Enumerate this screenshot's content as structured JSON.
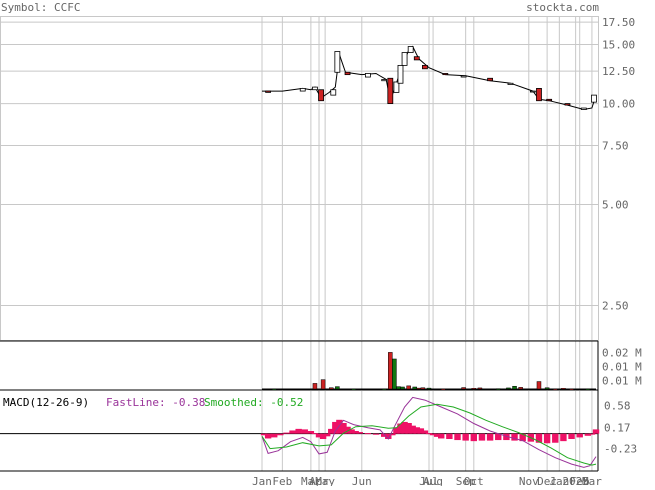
{
  "header": {
    "symbol_label": "Symbol: CCFC",
    "source_label": "stockta.com"
  },
  "colors": {
    "grid": "#c8c8c8",
    "frame": "#000000",
    "label": "#666666",
    "up_candle": "#ffffff",
    "down_candle": "#cc2222",
    "volume_up": "#117711",
    "volume_down": "#cc2222",
    "macd_hist": "#ee1166",
    "fast_line": "#993399",
    "smoothed_line": "#22aa22"
  },
  "chart_data": [
    {
      "type": "candlestick",
      "name": "price",
      "y_scale": "log",
      "ylim": [
        2.0,
        18.0
      ],
      "y_ticks": [
        "17.50",
        "15.00",
        "12.50",
        "10.00",
        "7.50",
        "5.00",
        "2.50"
      ],
      "y_tick_values": [
        17.5,
        15.0,
        12.5,
        10.0,
        7.5,
        5.0,
        2.5
      ],
      "x_tick_labels": [
        "Jan",
        "Feb",
        "Mar",
        "Apr",
        "May",
        "Jun",
        "Jul",
        "Aug",
        "Sep",
        "Oct",
        "Nov",
        "Dec",
        "Jan",
        "2025",
        "Feb",
        "Mar"
      ],
      "x_tick_index": [
        0,
        10,
        24,
        28,
        31,
        49,
        82,
        84,
        100,
        104,
        131,
        140,
        146,
        154,
        156,
        162
      ],
      "n_bars": 165,
      "candles": [
        {
          "i": 3,
          "o": 10.9,
          "c": 10.8
        },
        {
          "i": 20,
          "o": 10.9,
          "c": 11.1
        },
        {
          "i": 26,
          "o": 11.0,
          "c": 11.2
        },
        {
          "i": 29,
          "o": 11.0,
          "c": 10.2
        },
        {
          "i": 35,
          "o": 10.6,
          "c": 11.0
        },
        {
          "i": 37,
          "o": 12.4,
          "c": 14.3
        },
        {
          "i": 42,
          "o": 12.4,
          "c": 12.2
        },
        {
          "i": 52,
          "o": 12.0,
          "c": 12.3
        },
        {
          "i": 60,
          "o": 11.7,
          "c": 11.8
        },
        {
          "i": 63,
          "o": 11.9,
          "c": 10.0
        },
        {
          "i": 66,
          "o": 10.8,
          "c": 11.6
        },
        {
          "i": 68,
          "o": 11.5,
          "c": 13.0
        },
        {
          "i": 70,
          "o": 13.0,
          "c": 14.2
        },
        {
          "i": 73,
          "o": 14.2,
          "c": 14.8
        },
        {
          "i": 76,
          "o": 13.8,
          "c": 13.5
        },
        {
          "i": 80,
          "o": 13.0,
          "c": 12.7
        },
        {
          "i": 90,
          "o": 12.3,
          "c": 12.2
        },
        {
          "i": 99,
          "o": 12.0,
          "c": 12.1
        },
        {
          "i": 112,
          "o": 11.9,
          "c": 11.7
        },
        {
          "i": 122,
          "o": 11.4,
          "c": 11.5
        },
        {
          "i": 133,
          "o": 10.9,
          "c": 10.9
        },
        {
          "i": 136,
          "o": 11.1,
          "c": 10.2
        },
        {
          "i": 141,
          "o": 10.3,
          "c": 10.2
        },
        {
          "i": 150,
          "o": 10.0,
          "c": 9.9
        },
        {
          "i": 158,
          "o": 9.6,
          "c": 9.7
        },
        {
          "i": 163,
          "o": 10.1,
          "c": 10.6
        }
      ],
      "close_path": [
        [
          0,
          10.9
        ],
        [
          10,
          10.9
        ],
        [
          20,
          11.1
        ],
        [
          24,
          11.0
        ],
        [
          26,
          11.2
        ],
        [
          29,
          10.4
        ],
        [
          33,
          10.8
        ],
        [
          36,
          11.2
        ],
        [
          38,
          14.0
        ],
        [
          41,
          12.4
        ],
        [
          49,
          12.2
        ],
        [
          56,
          12.3
        ],
        [
          61,
          11.8
        ],
        [
          63,
          10.2
        ],
        [
          66,
          11.5
        ],
        [
          69,
          13.0
        ],
        [
          72,
          14.4
        ],
        [
          74,
          14.8
        ],
        [
          77,
          13.6
        ],
        [
          82,
          12.8
        ],
        [
          90,
          12.2
        ],
        [
          100,
          12.1
        ],
        [
          112,
          11.7
        ],
        [
          122,
          11.5
        ],
        [
          133,
          10.9
        ],
        [
          136,
          10.3
        ],
        [
          141,
          10.2
        ],
        [
          150,
          9.9
        ],
        [
          158,
          9.6
        ],
        [
          162,
          9.7
        ],
        [
          164,
          10.6
        ]
      ]
    },
    {
      "type": "bar",
      "name": "volume",
      "y_ticks": [
        "0.02 M",
        "0.01 M",
        "0.01 M"
      ],
      "ylim": [
        0,
        0.025
      ],
      "bars": [
        {
          "i": 6,
          "v": 0.0005,
          "up": true
        },
        {
          "i": 26,
          "v": 0.0035,
          "up": false
        },
        {
          "i": 30,
          "v": 0.0055,
          "up": false
        },
        {
          "i": 34,
          "v": 0.0012,
          "up": false
        },
        {
          "i": 37,
          "v": 0.0018,
          "up": true
        },
        {
          "i": 45,
          "v": 0.0004,
          "up": true
        },
        {
          "i": 60,
          "v": 0.0005,
          "up": true
        },
        {
          "i": 63,
          "v": 0.02,
          "up": false
        },
        {
          "i": 65,
          "v": 0.0165,
          "up": true
        },
        {
          "i": 67,
          "v": 0.0018,
          "up": true
        },
        {
          "i": 69,
          "v": 0.0016,
          "up": true
        },
        {
          "i": 72,
          "v": 0.0022,
          "up": false
        },
        {
          "i": 75,
          "v": 0.0016,
          "up": true
        },
        {
          "i": 77,
          "v": 0.001,
          "up": false
        },
        {
          "i": 79,
          "v": 0.0012,
          "up": false
        },
        {
          "i": 82,
          "v": 0.001,
          "up": true
        },
        {
          "i": 89,
          "v": 0.0006,
          "up": false
        },
        {
          "i": 99,
          "v": 0.0013,
          "up": false
        },
        {
          "i": 104,
          "v": 0.0009,
          "up": false
        },
        {
          "i": 107,
          "v": 0.0011,
          "up": false
        },
        {
          "i": 116,
          "v": 0.0007,
          "up": true
        },
        {
          "i": 121,
          "v": 0.0011,
          "up": true
        },
        {
          "i": 124,
          "v": 0.002,
          "up": true
        },
        {
          "i": 127,
          "v": 0.0014,
          "up": false
        },
        {
          "i": 136,
          "v": 0.0045,
          "up": false
        },
        {
          "i": 140,
          "v": 0.0012,
          "up": true
        },
        {
          "i": 144,
          "v": 0.0005,
          "up": false
        },
        {
          "i": 148,
          "v": 0.0009,
          "up": false
        },
        {
          "i": 152,
          "v": 0.0006,
          "up": false
        },
        {
          "i": 160,
          "v": 0.0004,
          "up": true
        }
      ]
    },
    {
      "type": "line",
      "name": "macd",
      "title": "MACD(12-26-9)",
      "fast_label": "FastLine: -0.38",
      "smoothed_label": "Smoothed: -0.52",
      "y_ticks": [
        "0.58",
        "0.17",
        "-0.23"
      ],
      "y_tick_values": [
        0.58,
        0.17,
        -0.23
      ],
      "ylim": [
        -0.65,
        0.85
      ],
      "zero_line": 0.05,
      "fast": [
        [
          0,
          0.0
        ],
        [
          3,
          -0.32
        ],
        [
          8,
          -0.27
        ],
        [
          14,
          -0.1
        ],
        [
          20,
          -0.02
        ],
        [
          24,
          -0.1
        ],
        [
          28,
          -0.33
        ],
        [
          32,
          -0.3
        ],
        [
          36,
          0.1
        ],
        [
          40,
          0.3
        ],
        [
          45,
          0.22
        ],
        [
          52,
          0.16
        ],
        [
          58,
          0.12
        ],
        [
          62,
          -0.05
        ],
        [
          65,
          0.18
        ],
        [
          70,
          0.55
        ],
        [
          74,
          0.73
        ],
        [
          80,
          0.68
        ],
        [
          88,
          0.55
        ],
        [
          96,
          0.42
        ],
        [
          104,
          0.24
        ],
        [
          112,
          0.1
        ],
        [
          120,
          0.0
        ],
        [
          128,
          -0.08
        ],
        [
          136,
          -0.25
        ],
        [
          144,
          -0.4
        ],
        [
          152,
          -0.52
        ],
        [
          158,
          -0.58
        ],
        [
          161,
          -0.55
        ],
        [
          164,
          -0.38
        ]
      ],
      "smoothed": [
        [
          0,
          0.0
        ],
        [
          4,
          -0.23
        ],
        [
          12,
          -0.2
        ],
        [
          20,
          -0.12
        ],
        [
          28,
          -0.18
        ],
        [
          34,
          -0.16
        ],
        [
          40,
          0.06
        ],
        [
          46,
          0.18
        ],
        [
          54,
          0.2
        ],
        [
          62,
          0.15
        ],
        [
          66,
          0.16
        ],
        [
          72,
          0.38
        ],
        [
          78,
          0.55
        ],
        [
          86,
          0.6
        ],
        [
          94,
          0.55
        ],
        [
          102,
          0.44
        ],
        [
          110,
          0.3
        ],
        [
          118,
          0.18
        ],
        [
          126,
          0.07
        ],
        [
          134,
          -0.06
        ],
        [
          142,
          -0.22
        ],
        [
          150,
          -0.4
        ],
        [
          158,
          -0.5
        ],
        [
          162,
          -0.54
        ],
        [
          164,
          -0.52
        ]
      ],
      "histogram": [
        [
          1,
          -0.03
        ],
        [
          3,
          -0.09
        ],
        [
          6,
          -0.07
        ],
        [
          9,
          -0.03
        ],
        [
          12,
          0.02
        ],
        [
          15,
          0.06
        ],
        [
          18,
          0.09
        ],
        [
          21,
          0.08
        ],
        [
          24,
          0.05
        ],
        [
          26,
          0.01
        ],
        [
          28,
          -0.07
        ],
        [
          30,
          -0.1
        ],
        [
          32,
          -0.05
        ],
        [
          34,
          0.09
        ],
        [
          36,
          0.22
        ],
        [
          38,
          0.26
        ],
        [
          40,
          0.2
        ],
        [
          42,
          0.13
        ],
        [
          44,
          0.08
        ],
        [
          46,
          0.05
        ],
        [
          48,
          0.03
        ],
        [
          52,
          0.01
        ],
        [
          56,
          -0.02
        ],
        [
          60,
          -0.06
        ],
        [
          62,
          -0.1
        ],
        [
          64,
          -0.03
        ],
        [
          66,
          0.12
        ],
        [
          68,
          0.19
        ],
        [
          70,
          0.22
        ],
        [
          72,
          0.2
        ],
        [
          74,
          0.15
        ],
        [
          76,
          0.12
        ],
        [
          78,
          0.1
        ],
        [
          80,
          0.06
        ],
        [
          82,
          0.01
        ],
        [
          84,
          -0.03
        ],
        [
          86,
          -0.06
        ],
        [
          88,
          -0.09
        ],
        [
          92,
          -0.1
        ],
        [
          96,
          -0.12
        ],
        [
          100,
          -0.13
        ],
        [
          104,
          -0.14
        ],
        [
          108,
          -0.13
        ],
        [
          112,
          -0.13
        ],
        [
          116,
          -0.12
        ],
        [
          120,
          -0.12
        ],
        [
          124,
          -0.13
        ],
        [
          128,
          -0.14
        ],
        [
          132,
          -0.15
        ],
        [
          136,
          -0.17
        ],
        [
          140,
          -0.18
        ],
        [
          144,
          -0.17
        ],
        [
          148,
          -0.14
        ],
        [
          152,
          -0.1
        ],
        [
          156,
          -0.07
        ],
        [
          160,
          -0.04
        ],
        [
          162,
          -0.01
        ],
        [
          164,
          0.08
        ]
      ]
    }
  ]
}
